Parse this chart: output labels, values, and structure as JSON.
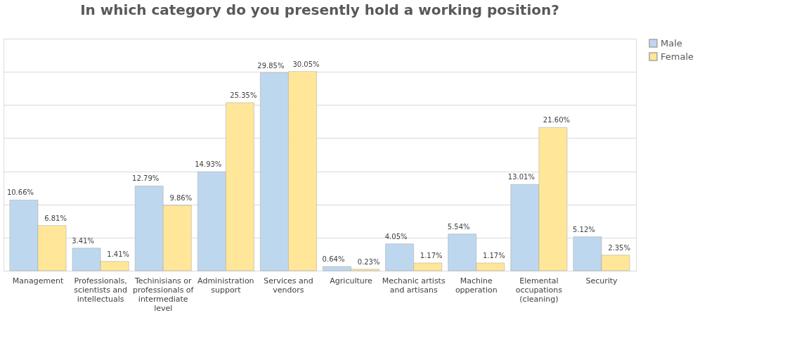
{
  "chart_data": {
    "type": "bar",
    "title": "In which category do you presently hold a working position?",
    "categories": [
      "Management",
      "Professionals, scientists and intellectuals",
      "Techinisians or professionals of intermediate level",
      "Administration support",
      "Services and vendors",
      "Agriculture",
      "Mechanic artists and artisans",
      "Machine opperation",
      "Elemental occupations (cleaning)",
      "Security"
    ],
    "series": [
      {
        "name": "Male",
        "color": "#bdd7ee",
        "values": [
          10.66,
          3.41,
          12.79,
          14.93,
          29.85,
          0.64,
          4.05,
          5.54,
          13.01,
          5.12
        ],
        "value_labels": [
          "10.66%",
          "3.41%",
          "12.79%",
          "14.93%",
          "29.85%",
          "0.64%",
          "4.05%",
          "5.54%",
          "13.01%",
          "5.12%"
        ]
      },
      {
        "name": "Female",
        "color": "#ffe699",
        "values": [
          6.81,
          1.41,
          9.86,
          25.35,
          30.05,
          0.23,
          1.17,
          1.17,
          21.6,
          2.35
        ],
        "value_labels": [
          "6.81%",
          "1.41%",
          "9.86%",
          "25.35%",
          "30.05%",
          "0.23%",
          "1.17%",
          "1.17%",
          "21.60%",
          "2.35%"
        ]
      }
    ],
    "ylim": [
      0,
      35
    ],
    "yticks": [
      {
        "value": 0,
        "label": null
      },
      {
        "value": 5,
        "label": null
      },
      {
        "value": 10,
        "label": null
      },
      {
        "value": 15,
        "label": null
      },
      {
        "value": 20,
        "label": null
      },
      {
        "value": 25,
        "label": null
      },
      {
        "value": 30,
        "label": null
      },
      {
        "value": 35,
        "label": null
      }
    ],
    "grid": "y",
    "legend": "right",
    "tick_labels": "x"
  }
}
